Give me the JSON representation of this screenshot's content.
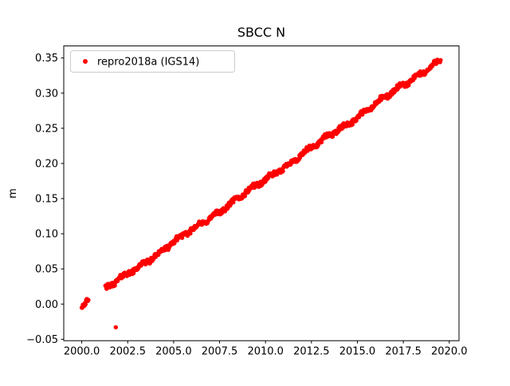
{
  "title": "SBCC N",
  "ylabel": "m",
  "xlabel": "",
  "legend": {
    "label": "repro2018a (IGS14)",
    "marker_color": "#ff0000",
    "position": "upper left"
  },
  "axes": {
    "xlim": [
      1999.02,
      2020.53
    ],
    "ylim": [
      -0.0521,
      0.3671
    ],
    "xticks": [
      2000.0,
      2002.5,
      2005.0,
      2007.5,
      2010.0,
      2012.5,
      2015.0,
      2017.5,
      2020.0
    ],
    "yticks": [
      -0.05,
      0.0,
      0.05,
      0.1,
      0.15,
      0.2,
      0.25,
      0.3,
      0.35
    ],
    "grid": false,
    "border_color": "#000000"
  },
  "chart_data": {
    "type": "scatter",
    "title": "SBCC N",
    "xlabel": "",
    "ylabel": "m",
    "legend_position": "upper left",
    "xlim": [
      1999.02,
      2020.53
    ],
    "ylim": [
      -0.0521,
      0.3671
    ],
    "series": [
      {
        "name": "repro2018a (IGS14)",
        "color": "#ff0000",
        "marker": "dot",
        "trend": {
          "x_start": 2000.0,
          "x_end": 2019.55,
          "y_at_x_start": -0.002,
          "y_at_x_end": 0.348,
          "slope_m_per_year": 0.0179
        },
        "data_gaps": [
          [
            2000.38,
            2001.28
          ]
        ],
        "outliers": [
          [
            2001.85,
            -0.033
          ]
        ],
        "scatter_spread_m": 0.0035,
        "sample_step_years": 0.03
      }
    ]
  }
}
